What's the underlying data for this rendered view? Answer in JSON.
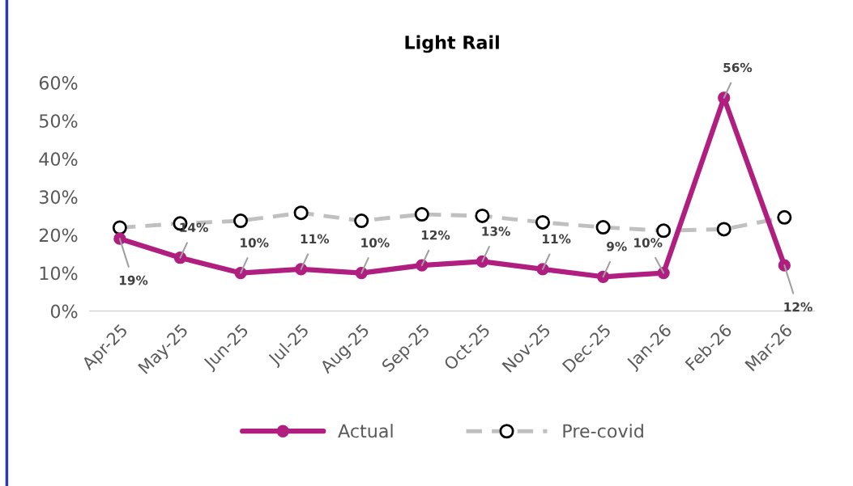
{
  "chart_data": {
    "type": "line",
    "title": "Light Rail",
    "categories": [
      "Apr-25",
      "May-25",
      "Jun-25",
      "Jul-25",
      "Aug-25",
      "Sep-25",
      "Oct-25",
      "Nov-25",
      "Dec-25",
      "Jan-26",
      "Feb-26",
      "Mar-26"
    ],
    "series": [
      {
        "name": "Actual",
        "color": "#b01f80",
        "marker": "circle",
        "line_style": "solid",
        "values": [
          19,
          14,
          10,
          11,
          10,
          12,
          13,
          11,
          9,
          10,
          56,
          12
        ],
        "value_labels": [
          "19%",
          "14%",
          "10%",
          "11%",
          "10%",
          "12%",
          "13%",
          "11%",
          "9%",
          "10%",
          "56%",
          "12%"
        ]
      },
      {
        "name": "Pre-covid",
        "color": "#c0c0c0",
        "marker": "circle",
        "line_style": "dashed",
        "values": [
          21.9,
          23.0,
          23.7,
          25.8,
          23.7,
          25.4,
          25.0,
          23.3,
          22.0,
          21.1,
          21.5,
          24.6
        ]
      }
    ],
    "ylim": [
      0,
      60
    ],
    "yticks": [
      {
        "value": 0,
        "label": "0%"
      },
      {
        "value": 10,
        "label": "10%"
      },
      {
        "value": 20,
        "label": "20%"
      },
      {
        "value": 30,
        "label": "30%"
      },
      {
        "value": 40,
        "label": "40%"
      },
      {
        "value": 50,
        "label": "50%"
      },
      {
        "value": 60,
        "label": "60%"
      }
    ],
    "grid": false,
    "legend": "bottom"
  }
}
